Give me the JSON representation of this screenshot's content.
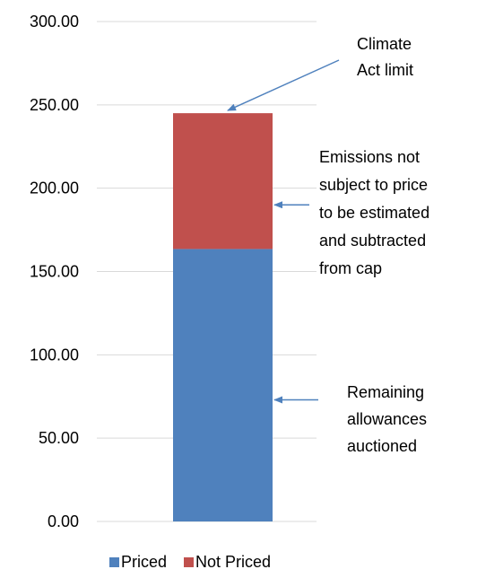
{
  "chart_data": {
    "type": "bar",
    "stacked": true,
    "categories": [
      ""
    ],
    "series": [
      {
        "name": "Priced",
        "values": [
          163.5
        ],
        "color": "#4f81bd"
      },
      {
        "name": "Not Priced",
        "values": [
          81.5
        ],
        "color": "#c0504d"
      }
    ],
    "ylim": [
      0,
      300
    ],
    "yticks": [
      "0.00",
      "50.00",
      "100.00",
      "150.00",
      "200.00",
      "250.00",
      "300.00"
    ],
    "ytick_values": [
      0,
      50,
      100,
      150,
      200,
      250,
      300
    ],
    "grid": true,
    "legend_position": "bottom",
    "annotations": [
      {
        "id": "climate",
        "lines": [
          "Climate",
          "Act limit"
        ],
        "points_to": 245,
        "arrow_color": "#4f81bd"
      },
      {
        "id": "not-priced",
        "lines": [
          "Emissions not",
          "subject to price",
          "to be estimated",
          "and subtracted",
          "from cap"
        ],
        "points_to": 190,
        "arrow_color": "#4f81bd"
      },
      {
        "id": "priced",
        "lines": [
          "Remaining",
          "allowances",
          "auctioned"
        ],
        "points_to": 73,
        "arrow_color": "#4f81bd"
      }
    ]
  }
}
